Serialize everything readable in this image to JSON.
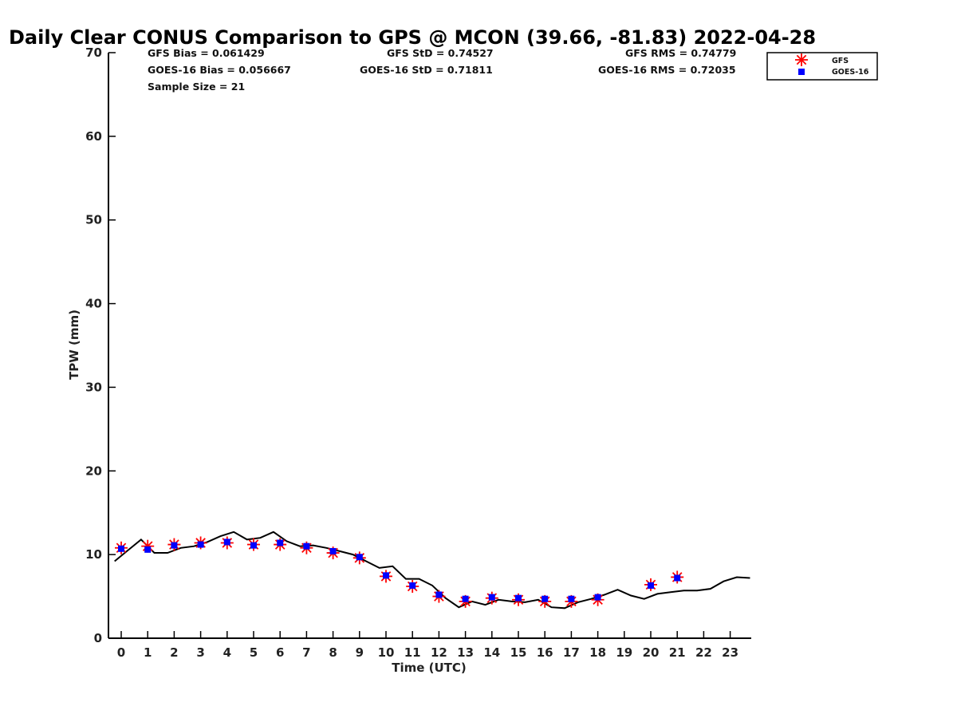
{
  "chart_data": {
    "type": "scatter",
    "title": "Daily Clear CONUS Comparison to GPS @ MCON (39.66, -81.83) 2022-04-28",
    "xlabel": "Time (UTC)",
    "ylabel": "TPW (mm)",
    "xlim": [
      -0.5,
      23.75
    ],
    "ylim": [
      0,
      70
    ],
    "xticks": [
      0,
      1,
      2,
      3,
      4,
      5,
      6,
      7,
      8,
      9,
      10,
      11,
      12,
      13,
      14,
      15,
      16,
      17,
      18,
      19,
      20,
      21,
      22,
      23
    ],
    "yticks": [
      0,
      10,
      20,
      30,
      40,
      50,
      60,
      70
    ],
    "grid": false,
    "legend_position": "top-right",
    "stats": {
      "gfs_bias": "GFS Bias = 0.061429",
      "goes_bias": "GOES-16 Bias = 0.056667",
      "sample_size": "Sample Size = 21",
      "gfs_std": "GFS StD = 0.74527",
      "goes_std": "GOES-16 StD = 0.71811",
      "gfs_rms": "GFS RMS = 0.74779",
      "goes_rms": "GOES-16 RMS = 0.72035"
    },
    "series": [
      {
        "name": "GFS",
        "marker": "asterisk",
        "color": "#ff0000",
        "x": [
          0,
          1,
          2,
          3,
          4,
          5,
          6,
          7,
          8,
          9,
          10,
          11,
          12,
          13,
          14,
          15,
          16,
          17,
          18,
          20,
          21
        ],
        "y": [
          10.8,
          11.0,
          11.2,
          11.4,
          11.4,
          11.2,
          11.2,
          10.8,
          10.2,
          9.6,
          7.4,
          6.2,
          5.0,
          4.4,
          4.8,
          4.6,
          4.4,
          4.4,
          4.6,
          6.4,
          7.3
        ]
      },
      {
        "name": "GOES-16",
        "marker": "square",
        "color": "#0000ff",
        "x": [
          0,
          1,
          2,
          3,
          4,
          5,
          6,
          7,
          8,
          9,
          10,
          11,
          12,
          13,
          14,
          15,
          16,
          17,
          18,
          20,
          21
        ],
        "y": [
          10.7,
          10.6,
          11.1,
          11.2,
          11.5,
          11.1,
          11.4,
          11.0,
          10.4,
          9.7,
          7.5,
          6.3,
          5.2,
          4.7,
          4.9,
          4.8,
          4.7,
          4.7,
          4.9,
          6.3,
          7.2
        ]
      },
      {
        "marker": "line",
        "color": "#000000",
        "x": [
          -0.25,
          0.25,
          0.75,
          1.25,
          1.75,
          2.25,
          2.75,
          3.25,
          3.75,
          4.25,
          4.75,
          5.25,
          5.75,
          6.25,
          6.75,
          7.25,
          7.75,
          8.25,
          8.75,
          9.25,
          9.75,
          10.25,
          10.75,
          11.25,
          11.75,
          12.25,
          12.75,
          13.25,
          13.75,
          14.25,
          14.75,
          15.25,
          15.75,
          16.25,
          16.75,
          17.25,
          17.75,
          18.25,
          18.75,
          19.25,
          19.75,
          20.25,
          20.75,
          21.25,
          21.75,
          22.25,
          22.75,
          23.25,
          23.75
        ],
        "y": [
          9.2,
          10.5,
          11.8,
          10.2,
          10.2,
          10.8,
          11.0,
          11.5,
          12.2,
          12.7,
          11.8,
          12.0,
          12.7,
          11.6,
          11.0,
          11.1,
          10.8,
          10.4,
          10.0,
          9.2,
          8.4,
          8.6,
          7.1,
          7.1,
          6.3,
          4.8,
          3.7,
          4.4,
          4.0,
          4.6,
          4.4,
          4.3,
          4.6,
          3.7,
          3.6,
          4.3,
          4.7,
          5.2,
          5.8,
          5.1,
          4.7,
          5.3,
          5.5,
          5.7,
          5.7,
          5.9,
          6.8,
          7.3,
          7.2
        ]
      }
    ]
  }
}
